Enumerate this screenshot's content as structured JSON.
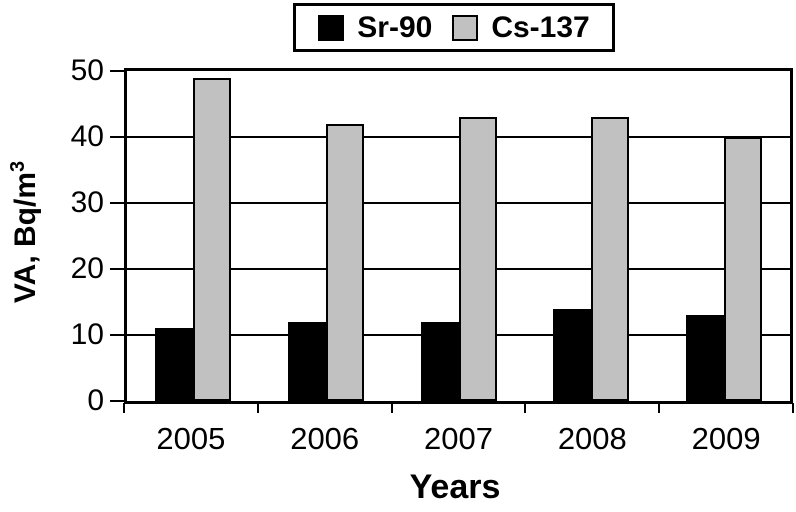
{
  "chart_data": {
    "type": "bar",
    "categories": [
      "2005",
      "2006",
      "2007",
      "2008",
      "2009"
    ],
    "series": [
      {
        "name": "Sr-90",
        "color": "#000000",
        "values": [
          11,
          12,
          12,
          14,
          13
        ]
      },
      {
        "name": "Cs-137",
        "color": "#c1c1c1",
        "values": [
          49,
          42,
          43,
          43,
          40
        ]
      }
    ],
    "xlabel": "Years",
    "ylabel": "VA, Bq/m³",
    "ylabel_main": "VA, Bq/m",
    "ylabel_superscript": "3",
    "ylim": [
      0,
      50
    ],
    "yticks": [
      0,
      10,
      20,
      30,
      40,
      50
    ],
    "grid": "horizontal",
    "legend_position": "top-center",
    "bar_outline_color": "#000000",
    "axis_color": "#000000",
    "background_color": "#ffffff"
  }
}
